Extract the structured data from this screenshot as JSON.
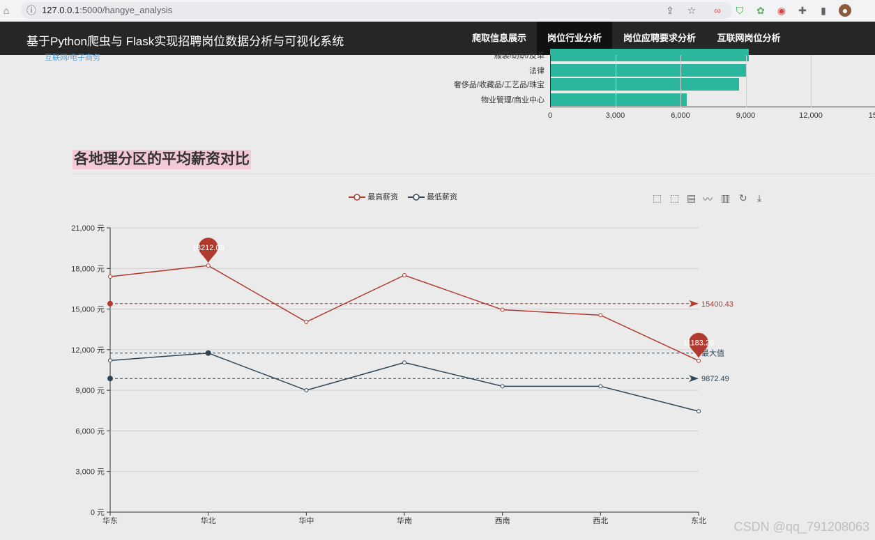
{
  "browser": {
    "url_host": "127.0.0.1",
    "url_path": ":5000/hangye_analysis"
  },
  "nav": {
    "brand": "基于Python爬虫与 Flask实现招聘岗位数据分析与可视化系统",
    "items": [
      "爬取信息展示",
      "岗位行业分析",
      "岗位应聘要求分析",
      "互联网岗位分析"
    ],
    "active_index": 1
  },
  "prev_link": "互联网/电子商务",
  "bar_chart": {
    "type": "bar",
    "categories": [
      "服装/纺织/皮革",
      "法律",
      "奢侈品/收藏品/工艺品/珠宝",
      "物业管理/商业中心"
    ],
    "values": [
      9150,
      9000,
      8700,
      6300
    ],
    "xticks": [
      "0",
      "3,000",
      "6,000",
      "9,000",
      "12,000",
      "15,0"
    ],
    "xlim": [
      0,
      15000
    ],
    "bar_color": "#2ab79e"
  },
  "section_title": "各地理分区的平均薪资对比",
  "chart_data": {
    "type": "line",
    "categories": [
      "华东",
      "华北",
      "华中",
      "华南",
      "西南",
      "西北",
      "东北"
    ],
    "series": [
      {
        "name": "最高薪资",
        "color": "#b03a2e",
        "values": [
          17400,
          18212.09,
          14050,
          17500,
          14950,
          14550,
          11183.26
        ]
      },
      {
        "name": "最低薪资",
        "color": "#2f4554",
        "values": [
          11200,
          11750,
          9000,
          11050,
          9300,
          9300,
          7450
        ]
      }
    ],
    "ylim": [
      0,
      21000
    ],
    "yticks": [
      "0 元",
      "3,000 元",
      "6,000 元",
      "9,000 元",
      "12,000 元",
      "15,000 元",
      "18,000 元",
      "21,000 元"
    ],
    "markpoints": [
      {
        "label": "18212.09",
        "series": 0,
        "index": 1,
        "value": 18212.09
      },
      {
        "label": "11183.26",
        "series": 0,
        "index": 6,
        "value": 11183.26
      }
    ],
    "marklines": [
      {
        "label": "15400.43",
        "value": 15400.43,
        "color": "#b03a2e"
      },
      {
        "label": "9872.49",
        "value": 9872.49,
        "color": "#2f4554"
      },
      {
        "label": "最大值",
        "value": 11750,
        "color": "#2f4554"
      }
    ],
    "legend": "top-center"
  },
  "toolbox_icons": [
    "zoom-icon",
    "zoom-reset-icon",
    "data-view-icon",
    "line-icon",
    "bar-icon",
    "restore-icon",
    "download-icon"
  ],
  "watermark": "CSDN @qq_791208063"
}
